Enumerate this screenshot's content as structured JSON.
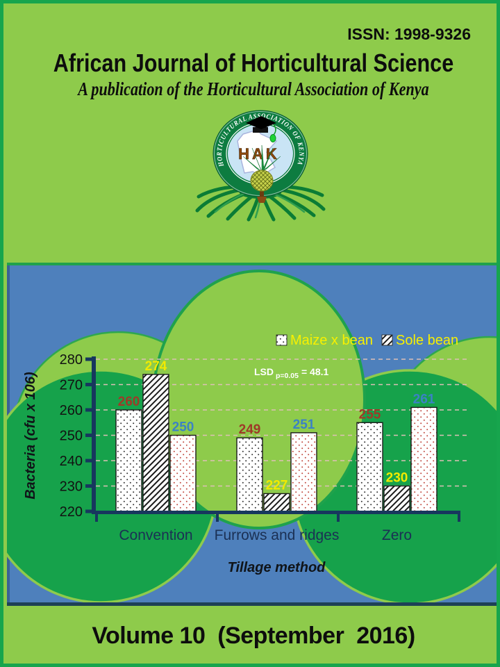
{
  "header": {
    "issn": "ISSN: 1998-9326",
    "title": "African Journal of Horticultural Science",
    "subtitle": "A publication of the Horticultural Association of Kenya"
  },
  "logo": {
    "ring_text": "HORTICULTURAL ASSOCIATION OF KENYA",
    "acronym": "HAK"
  },
  "footer": {
    "volume_line": "Volume 10  (September  2016)"
  },
  "colors": {
    "page_green": "#8ecb4b",
    "border_green": "#17a54d",
    "panel_blue": "#4e80bc",
    "dark_circle_green": "#16a24b",
    "axis_navy": "#17375e",
    "gridline": "#ddbfb6",
    "legend_yellow": "#f8f000",
    "label_red": "#9e3a28",
    "label_yellow": "#f2ea00",
    "label_blue": "#3b82c4"
  },
  "chart_data": {
    "type": "bar",
    "categories": [
      "Convention",
      "Furrows and ridges",
      "Zero"
    ],
    "series": [
      {
        "name": "Maize x bean",
        "pattern": "black-dots",
        "label_color": "#9e3a28",
        "values": [
          260,
          249,
          255
        ]
      },
      {
        "name": "Sole bean",
        "pattern": "diagonal-hatch",
        "label_color": "#f2ea00",
        "values": [
          274,
          227,
          230
        ]
      },
      {
        "name": "",
        "pattern": "red-dots",
        "label_color": "#3b82c4",
        "values": [
          250,
          251,
          261
        ]
      }
    ],
    "legend": [
      "Maize x bean",
      "Sole bean"
    ],
    "legend_position": "top-inside",
    "annotation": {
      "prefix": "LSD",
      "subscript": "p=0.05",
      "rest": "= 48.1"
    },
    "xlabel": "Tillage method",
    "ylabel": "Bacteria (cfu x 106)",
    "ylim": [
      220,
      280
    ],
    "ytick_step": 10,
    "grid": true
  }
}
